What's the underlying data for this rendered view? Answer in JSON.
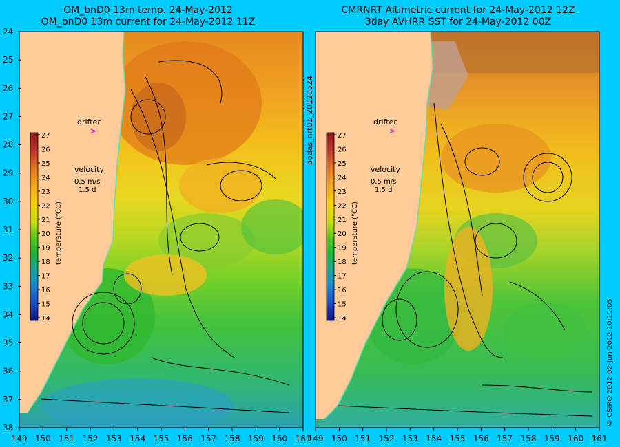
{
  "left_panel": {
    "title_line1": "OM_bnD0 13m temp. 24-May-2012",
    "title_line2": "OM_bnD0 13m current for 24-May-2012 11Z",
    "drifter_label": "drifter",
    "drifter_marker": ">",
    "velocity_label": "velocity",
    "velocity_value": "0.5 m/s",
    "velocity_duration": "1.5 d",
    "colorbar_label": "temperature (℃C)"
  },
  "right_panel": {
    "title_line1": "CMRNRT Altimetric current for 24-May-2012 12Z",
    "title_line2": "3day AVHRR SST for 24-May-2012 00Z",
    "drifter_label": "drifter",
    "drifter_marker": ">",
    "velocity_label": "velocity",
    "velocity_value": "0.5 m/s",
    "velocity_duration": "1.5 d",
    "colorbar_label": "temperature (℃C)"
  },
  "side_label": "bodas_nrt01_20120524",
  "credit": "© CSIRO 2012   02-Jun-2012 10:11:05",
  "lat_labels": [
    "24",
    "25",
    "26",
    "27",
    "28",
    "29",
    "30",
    "31",
    "32",
    "33",
    "34",
    "35",
    "36",
    "37",
    "38"
  ],
  "lon_labels": [
    "149",
    "150",
    "151",
    "152",
    "153",
    "154",
    "155",
    "156",
    "157",
    "158",
    "159",
    "160",
    "161"
  ],
  "colorbar_ticks": [
    "27",
    "26",
    "25",
    "24",
    "23",
    "22",
    "21",
    "20",
    "19",
    "18",
    "17",
    "16",
    "15",
    "14"
  ],
  "colors": {
    "background": "#00ccff",
    "land": "#ffcc99",
    "drifter": "#ff00ff",
    "coastline": "#66ddaa"
  }
}
